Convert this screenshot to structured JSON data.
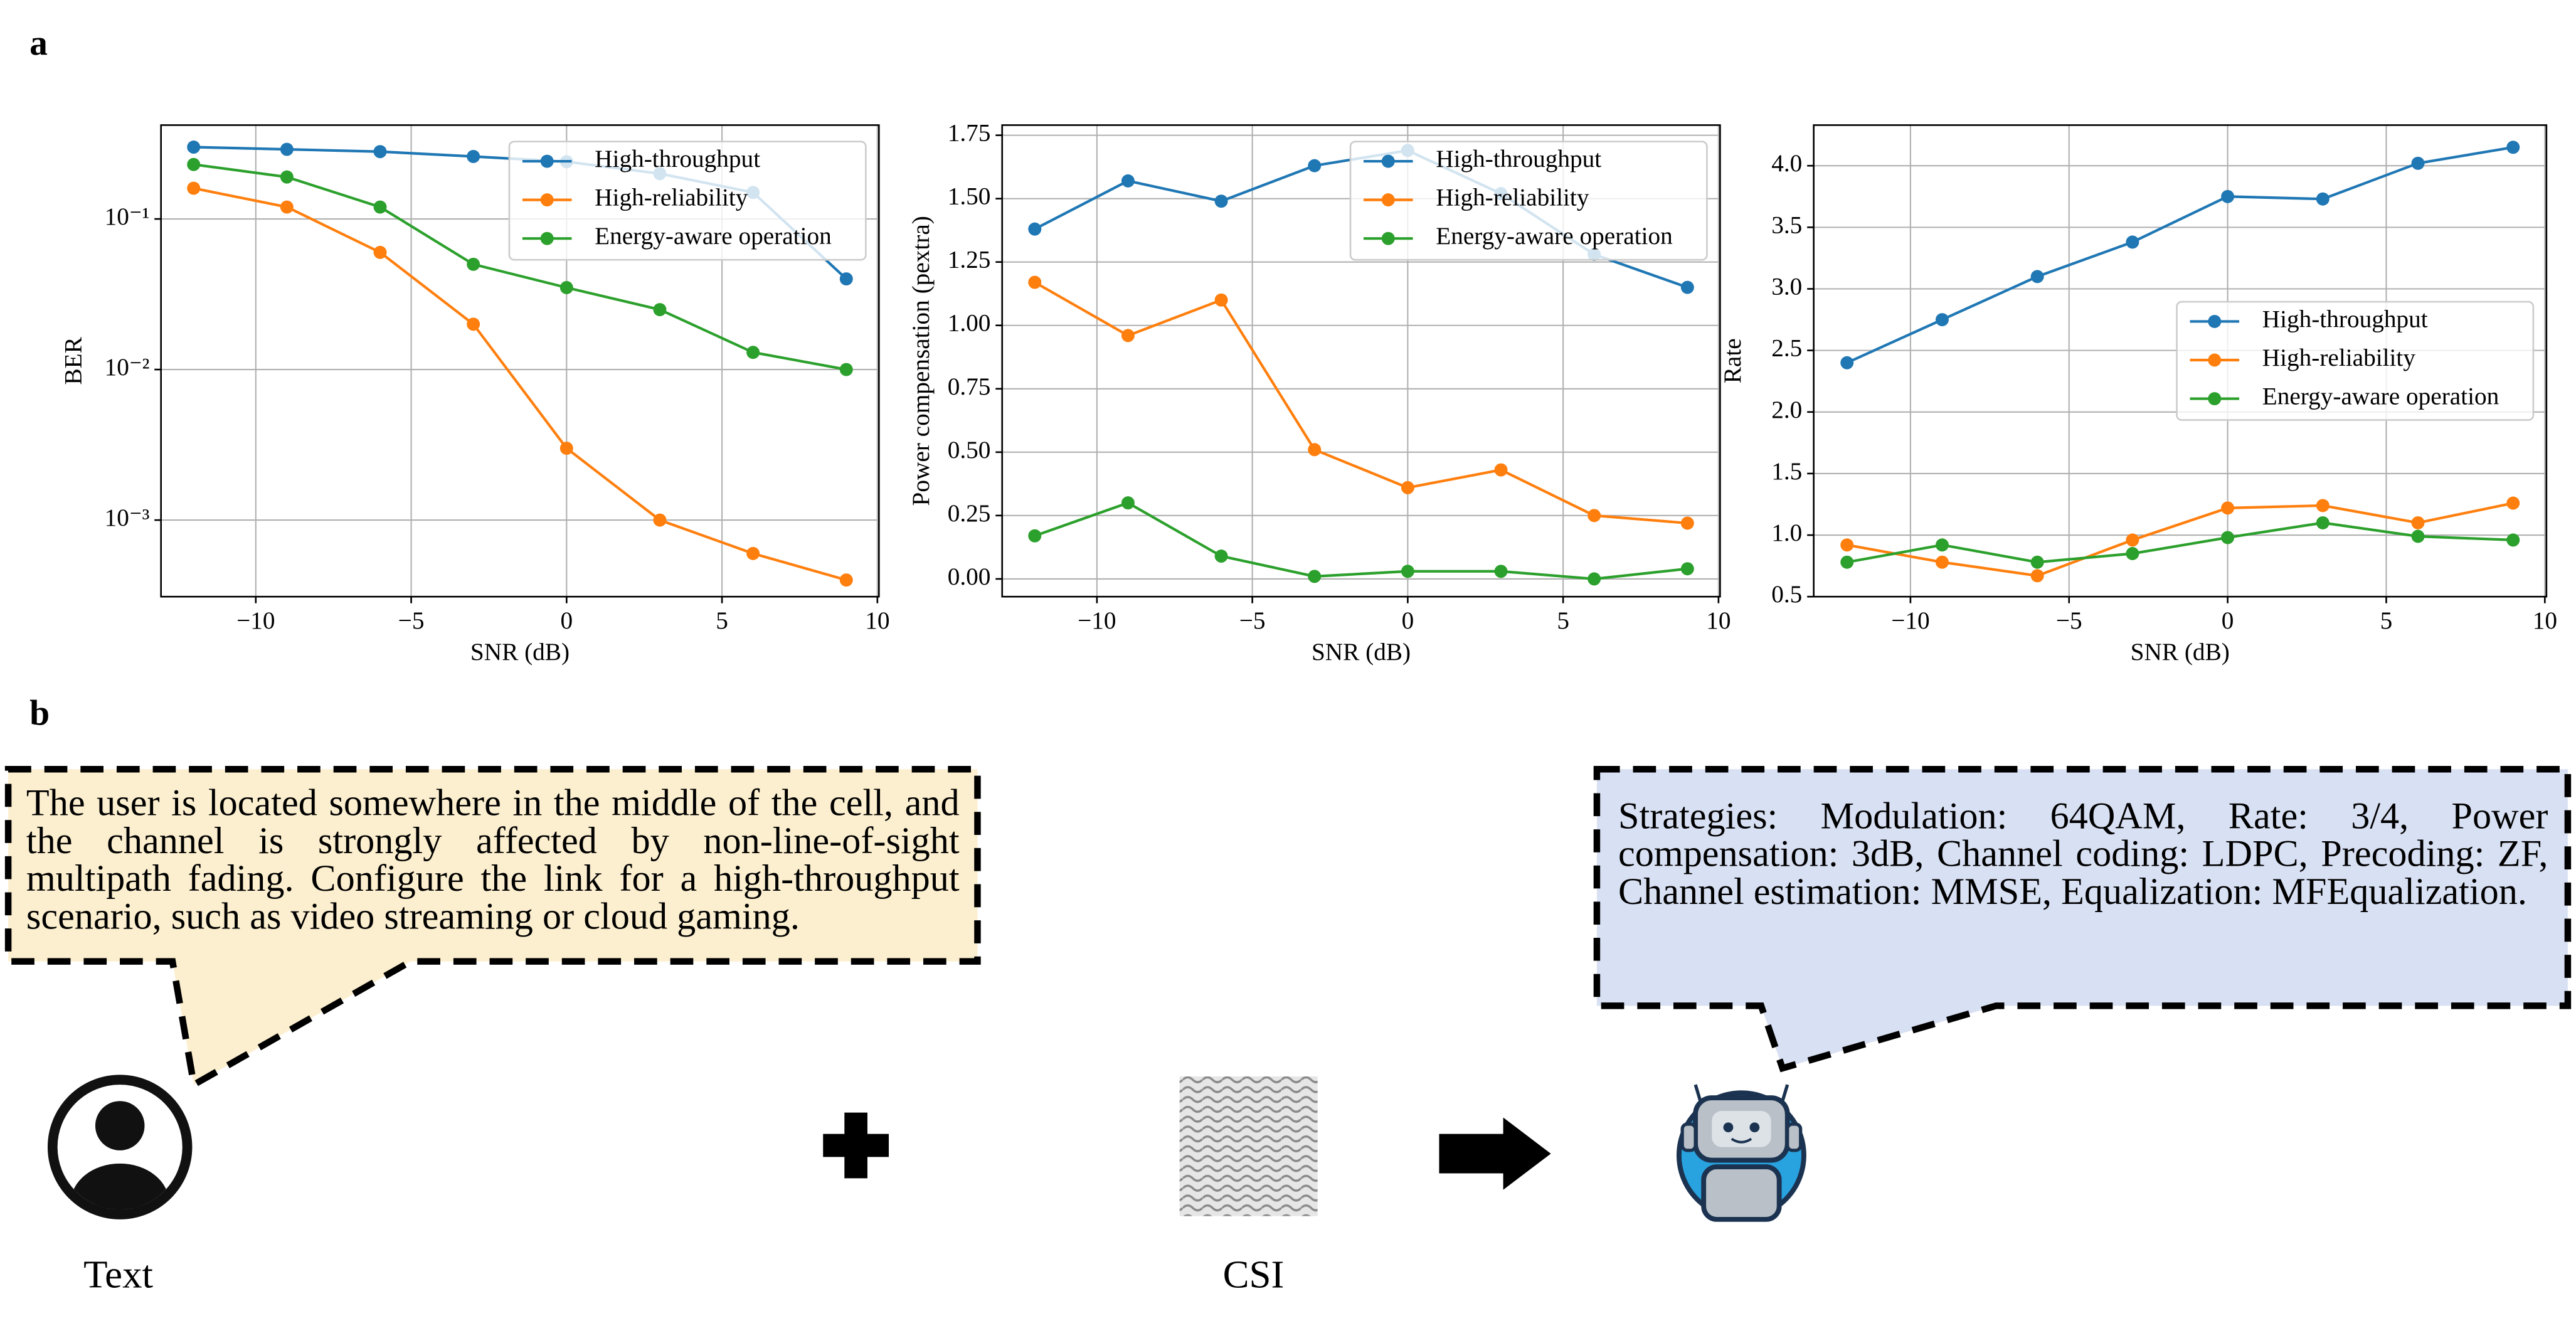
{
  "panel_labels": [
    "a",
    "b"
  ],
  "chart_data": [
    {
      "type": "line",
      "xlabel": "SNR (dB)",
      "ylabel": "BER",
      "yscale": "log",
      "grid": true,
      "legend": "upper right",
      "x": [
        -12,
        -9,
        -6,
        -3,
        0,
        3,
        6,
        9
      ],
      "xlim": [
        -13.05,
        10.05
      ],
      "xticks": [
        {
          "value": -10,
          "label": "−10"
        },
        {
          "value": -5,
          "label": "−5"
        },
        0,
        5,
        10
      ],
      "ylim": [
        0.00031,
        0.42
      ],
      "yticks": [
        {
          "value": 0.001,
          "label": "10⁻³"
        },
        {
          "value": 0.01,
          "label": "10⁻²"
        },
        {
          "value": 0.1,
          "label": "10⁻¹"
        }
      ],
      "series": [
        {
          "name": "High-throughput",
          "color": "#1f77b4",
          "values": [
            0.3,
            0.29,
            0.28,
            0.26,
            0.24,
            0.2,
            0.15,
            0.04
          ]
        },
        {
          "name": "High-reliability",
          "color": "#ff7f0e",
          "values": [
            0.16,
            0.12,
            0.06,
            0.02,
            0.003,
            0.001,
            0.0006,
            0.0004
          ]
        },
        {
          "name": "Energy-aware operation",
          "color": "#2ca02c",
          "values": [
            0.23,
            0.19,
            0.12,
            0.05,
            0.035,
            0.025,
            0.013,
            0.01
          ]
        }
      ]
    },
    {
      "type": "line",
      "xlabel": "SNR (dB)",
      "ylabel": "Power compensation (pextra)",
      "grid": true,
      "legend": "upper right",
      "x": [
        -12,
        -9,
        -6,
        -3,
        0,
        3,
        6,
        9
      ],
      "xlim": [
        -13.05,
        10.05
      ],
      "xticks": [
        {
          "value": -10,
          "label": "−10"
        },
        {
          "value": -5,
          "label": "−5"
        },
        0,
        5,
        10
      ],
      "ylim": [
        -0.07,
        1.79
      ],
      "yticks": [
        {
          "value": 0,
          "label": "0.00"
        },
        0.25,
        {
          "value": 0.5,
          "label": "0.50"
        },
        0.75,
        {
          "value": 1,
          "label": "1.00"
        },
        1.25,
        {
          "value": 1.5,
          "label": "1.50"
        },
        1.75
      ],
      "series": [
        {
          "name": "High-throughput",
          "color": "#1f77b4",
          "values": [
            1.38,
            1.57,
            1.49,
            1.63,
            1.69,
            1.52,
            1.28,
            1.15
          ]
        },
        {
          "name": "High-reliability",
          "color": "#ff7f0e",
          "values": [
            1.17,
            0.96,
            1.1,
            0.51,
            0.36,
            0.43,
            0.25,
            0.22
          ]
        },
        {
          "name": "Energy-aware operation",
          "color": "#2ca02c",
          "values": [
            0.17,
            0.3,
            0.09,
            0.01,
            0.03,
            0.03,
            0.0,
            0.04
          ]
        }
      ]
    },
    {
      "type": "line",
      "xlabel": "SNR (dB)",
      "ylabel": "Rate",
      "grid": true,
      "legend": "center right",
      "x": [
        -12,
        -9,
        -6,
        -3,
        0,
        3,
        6,
        9
      ],
      "xlim": [
        -13.05,
        10.05
      ],
      "xticks": [
        {
          "value": -10,
          "label": "−10"
        },
        {
          "value": -5,
          "label": "−5"
        },
        0,
        5,
        10
      ],
      "ylim": [
        0.5,
        4.33
      ],
      "yticks": [
        0.5,
        {
          "value": 1,
          "label": "1.0"
        },
        1.5,
        {
          "value": 2,
          "label": "2.0"
        },
        2.5,
        {
          "value": 3,
          "label": "3.0"
        },
        3.5,
        {
          "value": 4,
          "label": "4.0"
        }
      ],
      "series": [
        {
          "name": "High-throughput",
          "color": "#1f77b4",
          "values": [
            2.4,
            2.75,
            3.1,
            3.38,
            3.75,
            3.73,
            4.02,
            4.15
          ]
        },
        {
          "name": "High-reliability",
          "color": "#ff7f0e",
          "values": [
            0.92,
            0.78,
            0.67,
            0.96,
            1.22,
            1.24,
            1.1,
            1.26
          ]
        },
        {
          "name": "Energy-aware operation",
          "color": "#2ca02c",
          "values": [
            0.78,
            0.92,
            0.78,
            0.85,
            0.98,
            1.1,
            0.99,
            0.96
          ]
        }
      ]
    }
  ],
  "diagram": {
    "user_text": "The user is located somewhere in the middle of the cell, and the channel is strongly affected by non-line-of-sight multipath fading. Configure the link for a high-throughput scenario, such as video streaming or cloud gaming.",
    "input_labels": [
      "Text",
      "CSI"
    ],
    "output_text": "Strategies: Modulation: 64QAM, Rate: 3/4, Power compensation: 3dB, Channel coding: LDPC, Precoding: ZF, Channel estimation: MMSE, Equalization: MFEqualization."
  }
}
